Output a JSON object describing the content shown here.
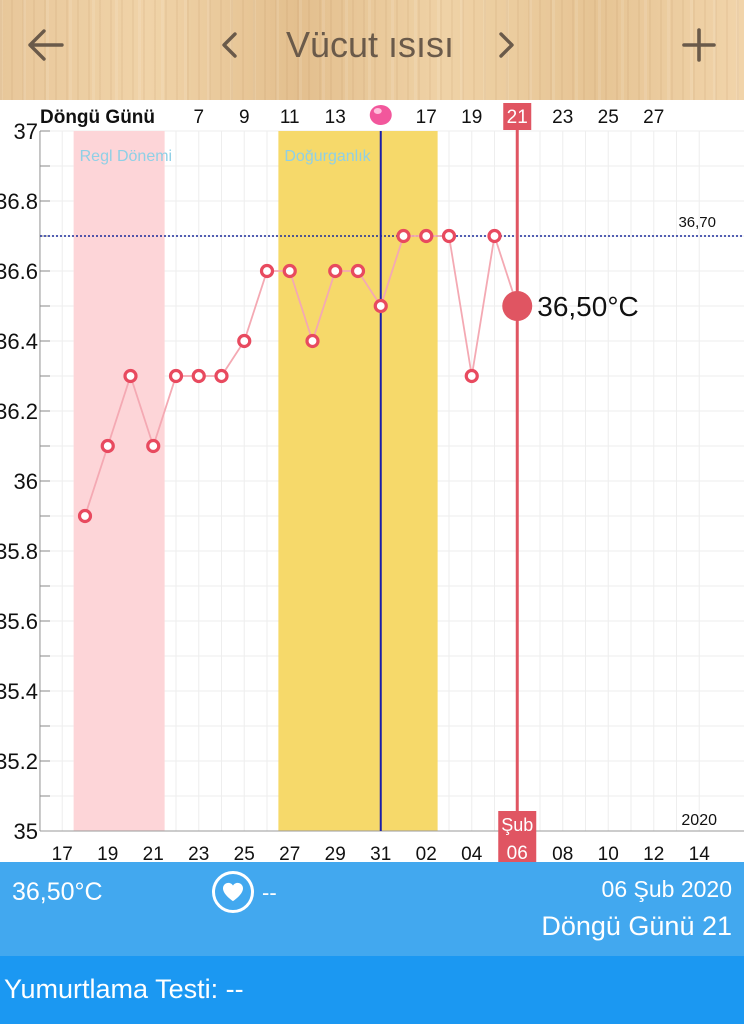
{
  "header": {
    "title": "Vücut ısısı",
    "back_icon": "arrow-left-icon",
    "prev_icon": "chevron-left-icon",
    "next_icon": "chevron-right-icon",
    "add_icon": "plus-icon"
  },
  "chart_data": {
    "type": "line",
    "ylim": [
      35,
      37
    ],
    "y_ticks": [
      "35",
      "35.2",
      "35.4",
      "35.6",
      "35.8",
      "36",
      "36.2",
      "36.4",
      "36.6",
      "36.8",
      "37"
    ],
    "cycle_label": "Döngü Günü",
    "cycle_ticks": [
      {
        "day": 7,
        "label": "7"
      },
      {
        "day": 9,
        "label": "9"
      },
      {
        "day": 11,
        "label": "11"
      },
      {
        "day": 13,
        "label": "13"
      },
      {
        "day": 17,
        "label": "17"
      },
      {
        "day": 19,
        "label": "19"
      },
      {
        "day": 23,
        "label": "23"
      },
      {
        "day": 25,
        "label": "25"
      },
      {
        "day": 27,
        "label": "27"
      }
    ],
    "date_ticks": [
      {
        "day": 1,
        "label": "17"
      },
      {
        "day": 3,
        "label": "19"
      },
      {
        "day": 5,
        "label": "21"
      },
      {
        "day": 7,
        "label": "23"
      },
      {
        "day": 9,
        "label": "25"
      },
      {
        "day": 11,
        "label": "27"
      },
      {
        "day": 13,
        "label": "29"
      },
      {
        "day": 15,
        "label": "31"
      },
      {
        "day": 17,
        "label": "02"
      },
      {
        "day": 19,
        "label": "04"
      },
      {
        "day": 23,
        "label": "08"
      },
      {
        "day": 25,
        "label": "10"
      },
      {
        "day": 27,
        "label": "12"
      },
      {
        "day": 29,
        "label": "14"
      }
    ],
    "x_day_range": [
      0,
      29
    ],
    "year_label": "2020",
    "series": [
      {
        "points": [
          {
            "day": 2,
            "value": 35.9
          },
          {
            "day": 3,
            "value": 36.1
          },
          {
            "day": 4,
            "value": 36.3
          },
          {
            "day": 5,
            "value": 36.1
          },
          {
            "day": 6,
            "value": 36.3
          },
          {
            "day": 7,
            "value": 36.3
          },
          {
            "day": 8,
            "value": 36.3
          },
          {
            "day": 9,
            "value": 36.4
          },
          {
            "day": 10,
            "value": 36.6
          },
          {
            "day": 11,
            "value": 36.6
          },
          {
            "day": 12,
            "value": 36.4
          },
          {
            "day": 13,
            "value": 36.6
          },
          {
            "day": 14,
            "value": 36.6
          },
          {
            "day": 15,
            "value": 36.5
          },
          {
            "day": 16,
            "value": 36.7
          },
          {
            "day": 17,
            "value": 36.7
          },
          {
            "day": 18,
            "value": 36.7
          },
          {
            "day": 19,
            "value": 36.3
          },
          {
            "day": 20,
            "value": 36.7
          },
          {
            "day": 21,
            "value": 36.5
          }
        ]
      }
    ],
    "line_color": "#f4a9b3",
    "marker_color": "#e84a5f",
    "bands": [
      {
        "label": "Regl Dönemi",
        "start_day": 1.5,
        "end_day": 5.5,
        "color": "#fdd5d8",
        "label_color": "#8fd0e6"
      },
      {
        "label": "Doğurganlık",
        "start_day": 10.5,
        "end_day": 17.5,
        "color": "#f6d96a",
        "label_color": "#8fd0e6"
      }
    ],
    "threshold": {
      "value": 36.7,
      "label": "36,70",
      "color": "#1a2a9a"
    },
    "ovulation": {
      "day": 15,
      "color": "#1a1fa8",
      "marker_icon": "ovulation-dot-icon",
      "marker_color": "#f2579c"
    },
    "selected": {
      "day": 21,
      "value": 36.5,
      "value_label": "36,50°C",
      "cycle_label": "21",
      "month_label": "Şub",
      "date_label": "06",
      "color": "#e05562"
    }
  },
  "footer": {
    "temperature": "36,50°C",
    "heart_icon": "heart-icon",
    "heart_value": "--",
    "date": "06 Şub 2020",
    "cycle_day": "Döngü Günü 21",
    "ovulation_test": "Yumurtlama Testi: --"
  },
  "colors": {
    "footer_blue": "#42a8ef",
    "footer_dark_blue": "#1b98f2"
  }
}
